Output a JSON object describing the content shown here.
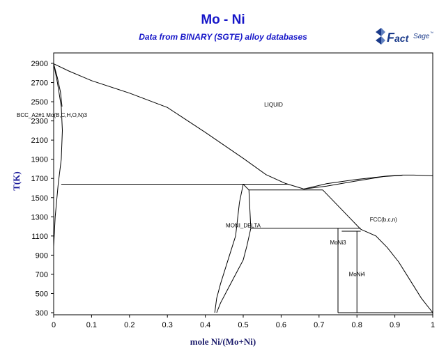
{
  "chart_data": {
    "type": "line",
    "title": "Mo - Ni",
    "subtitle": "Data from BINARY (SGTE) alloy databases",
    "xlabel": "mole Ni/(Mo+Ni)",
    "ylabel": "T(K)",
    "xlim": [
      0,
      1
    ],
    "ylim": [
      300,
      2900
    ],
    "x_ticks": [
      "0",
      "0.1",
      "0.2",
      "0.3",
      "0.4",
      "0.5",
      "0.6",
      "0.7",
      "0.8",
      "0.9",
      "1"
    ],
    "y_ticks": [
      "300",
      "500",
      "700",
      "900",
      "1100",
      "1300",
      "1500",
      "1700",
      "1900",
      "2100",
      "2300",
      "2500",
      "2700",
      "2900"
    ],
    "grid": false,
    "region_labels": [
      {
        "text": "LIQUID",
        "x": 0.58,
        "y": 2450
      },
      {
        "text": "BCC_A2#1 Mo(B,C,H,O,N)3",
        "x": 0.0,
        "y": 2340
      },
      {
        "text": "MONI_DELTA",
        "x": 0.5,
        "y": 1190
      },
      {
        "text": "FCC(b,c,n)",
        "x": 0.87,
        "y": 1250
      },
      {
        "text": "MoNi3",
        "x": 0.75,
        "y": 1010
      },
      {
        "text": "MoNi4",
        "x": 0.8,
        "y": 680
      }
    ],
    "series": [
      {
        "x": [
          0.0,
          0.04,
          0.1,
          0.2,
          0.3,
          0.4,
          0.5,
          0.56,
          0.61
        ],
        "y": [
          2896,
          2820,
          2720,
          2590,
          2440,
          2180,
          1910,
          1740,
          1650
        ]
      },
      {
        "x": [
          0.61,
          0.66
        ],
        "y": [
          1650,
          1590
        ]
      },
      {
        "x": [
          0.66,
          0.72,
          0.8,
          0.88,
          0.92,
          0.95,
          1.0
        ],
        "y": [
          1590,
          1645,
          1690,
          1725,
          1735,
          1735,
          1728
        ]
      },
      {
        "x": [
          0.66,
          0.72,
          0.8,
          0.87,
          0.92
        ],
        "y": [
          1590,
          1620,
          1675,
          1720,
          1732
        ]
      },
      {
        "x": [
          0.0,
          0.01,
          0.02,
          0.023,
          0.02,
          0.012,
          0.004,
          0.0
        ],
        "y": [
          2896,
          2700,
          2450,
          2200,
          1900,
          1640,
          1300,
          990
        ]
      },
      {
        "x": [
          0.0,
          0.01,
          0.018,
          0.022
        ],
        "y": [
          2896,
          2750,
          2600,
          2450
        ]
      },
      {
        "x": [
          0.02,
          0.62
        ],
        "y": [
          1640,
          1640
        ]
      },
      {
        "x": [
          0.5,
          0.515,
          0.52
        ],
        "y": [
          1640,
          1580,
          1180
        ]
      },
      {
        "x": [
          0.515,
          0.71
        ],
        "y": [
          1580,
          1580
        ]
      },
      {
        "x": [
          0.71,
          0.81
        ],
        "y": [
          1580,
          1170
        ]
      },
      {
        "x": [
          0.52,
          0.81
        ],
        "y": [
          1180,
          1180
        ]
      },
      {
        "x": [
          0.5,
          0.49,
          0.48,
          0.46,
          0.44,
          0.43,
          0.425
        ],
        "y": [
          1640,
          1450,
          1100,
          850,
          600,
          450,
          300
        ]
      },
      {
        "x": [
          0.52,
          0.51,
          0.5,
          0.48,
          0.46,
          0.44,
          0.43
        ],
        "y": [
          1180,
          1000,
          850,
          700,
          550,
          400,
          300
        ]
      },
      {
        "x": [
          0.75,
          0.75
        ],
        "y": [
          1180,
          300
        ]
      },
      {
        "x": [
          0.76,
          0.81
        ],
        "y": [
          1150,
          1150
        ]
      },
      {
        "x": [
          0.8,
          0.8
        ],
        "y": [
          1150,
          300
        ]
      },
      {
        "x": [
          0.81,
          0.85,
          0.88,
          0.91,
          0.94,
          0.97,
          1.0
        ],
        "y": [
          1170,
          1100,
          980,
          830,
          640,
          450,
          300
        ]
      },
      {
        "x": [
          0.75,
          1.0
        ],
        "y": [
          300,
          300
        ]
      }
    ]
  }
}
